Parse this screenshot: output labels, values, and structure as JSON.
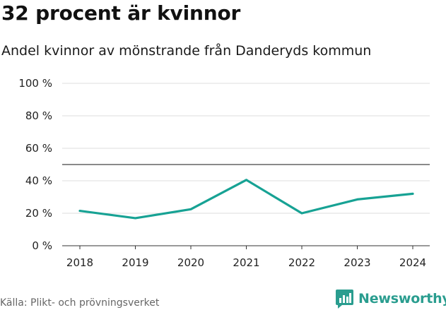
{
  "header": {
    "title": "32 procent är kvinnor",
    "subtitle": "Andel kvinnor av mönstrande från Danderyds kommun"
  },
  "footer": {
    "source": "Källa: Plikt- och prövningsverket",
    "brand": "Newsworthy",
    "brand_icon": "newsworthy-logo-icon"
  },
  "colors": {
    "line": "#17a294",
    "grid": "#dddddd",
    "reference": "#444444",
    "brand": "#2a9d8f"
  },
  "chart_data": {
    "type": "line",
    "title": "32 procent är kvinnor",
    "subtitle": "Andel kvinnor av mönstrande från Danderyds kommun",
    "categories": [
      "2018",
      "2019",
      "2020",
      "2021",
      "2022",
      "2023",
      "2024"
    ],
    "series": [
      {
        "name": "Andel kvinnor",
        "values": [
          21.5,
          17.0,
          22.5,
          40.5,
          20.0,
          28.5,
          32.0
        ]
      }
    ],
    "ylim": [
      0,
      100
    ],
    "yticks": [
      0,
      20,
      40,
      60,
      80,
      100
    ],
    "ytick_labels": [
      "0 %",
      "20 %",
      "40 %",
      "60 %",
      "80 %",
      "100 %"
    ],
    "reference_line": 50,
    "grid": true,
    "xlabel": "",
    "ylabel": ""
  }
}
